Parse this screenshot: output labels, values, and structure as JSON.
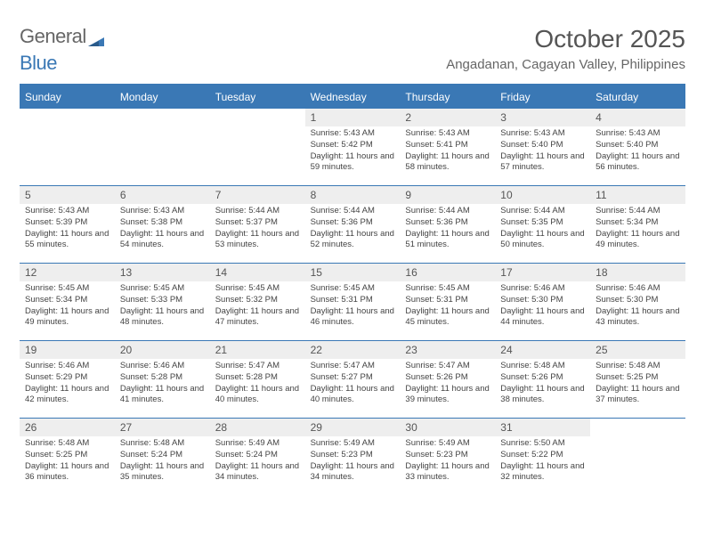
{
  "logo": {
    "part1": "General",
    "part2": "Blue"
  },
  "title": "October 2025",
  "subtitle": "Angadanan, Cagayan Valley, Philippines",
  "colors": {
    "brand_blue": "#3a78b5",
    "header_bg": "#3a78b5",
    "daynum_bg": "#eeeeee",
    "text": "#444444",
    "title_text": "#555555"
  },
  "day_headers": [
    "Sunday",
    "Monday",
    "Tuesday",
    "Wednesday",
    "Thursday",
    "Friday",
    "Saturday"
  ],
  "weeks": [
    [
      {
        "n": "",
        "sunrise": "",
        "sunset": "",
        "daylight": ""
      },
      {
        "n": "",
        "sunrise": "",
        "sunset": "",
        "daylight": ""
      },
      {
        "n": "",
        "sunrise": "",
        "sunset": "",
        "daylight": ""
      },
      {
        "n": "1",
        "sunrise": "Sunrise: 5:43 AM",
        "sunset": "Sunset: 5:42 PM",
        "daylight": "Daylight: 11 hours and 59 minutes."
      },
      {
        "n": "2",
        "sunrise": "Sunrise: 5:43 AM",
        "sunset": "Sunset: 5:41 PM",
        "daylight": "Daylight: 11 hours and 58 minutes."
      },
      {
        "n": "3",
        "sunrise": "Sunrise: 5:43 AM",
        "sunset": "Sunset: 5:40 PM",
        "daylight": "Daylight: 11 hours and 57 minutes."
      },
      {
        "n": "4",
        "sunrise": "Sunrise: 5:43 AM",
        "sunset": "Sunset: 5:40 PM",
        "daylight": "Daylight: 11 hours and 56 minutes."
      }
    ],
    [
      {
        "n": "5",
        "sunrise": "Sunrise: 5:43 AM",
        "sunset": "Sunset: 5:39 PM",
        "daylight": "Daylight: 11 hours and 55 minutes."
      },
      {
        "n": "6",
        "sunrise": "Sunrise: 5:43 AM",
        "sunset": "Sunset: 5:38 PM",
        "daylight": "Daylight: 11 hours and 54 minutes."
      },
      {
        "n": "7",
        "sunrise": "Sunrise: 5:44 AM",
        "sunset": "Sunset: 5:37 PM",
        "daylight": "Daylight: 11 hours and 53 minutes."
      },
      {
        "n": "8",
        "sunrise": "Sunrise: 5:44 AM",
        "sunset": "Sunset: 5:36 PM",
        "daylight": "Daylight: 11 hours and 52 minutes."
      },
      {
        "n": "9",
        "sunrise": "Sunrise: 5:44 AM",
        "sunset": "Sunset: 5:36 PM",
        "daylight": "Daylight: 11 hours and 51 minutes."
      },
      {
        "n": "10",
        "sunrise": "Sunrise: 5:44 AM",
        "sunset": "Sunset: 5:35 PM",
        "daylight": "Daylight: 11 hours and 50 minutes."
      },
      {
        "n": "11",
        "sunrise": "Sunrise: 5:44 AM",
        "sunset": "Sunset: 5:34 PM",
        "daylight": "Daylight: 11 hours and 49 minutes."
      }
    ],
    [
      {
        "n": "12",
        "sunrise": "Sunrise: 5:45 AM",
        "sunset": "Sunset: 5:34 PM",
        "daylight": "Daylight: 11 hours and 49 minutes."
      },
      {
        "n": "13",
        "sunrise": "Sunrise: 5:45 AM",
        "sunset": "Sunset: 5:33 PM",
        "daylight": "Daylight: 11 hours and 48 minutes."
      },
      {
        "n": "14",
        "sunrise": "Sunrise: 5:45 AM",
        "sunset": "Sunset: 5:32 PM",
        "daylight": "Daylight: 11 hours and 47 minutes."
      },
      {
        "n": "15",
        "sunrise": "Sunrise: 5:45 AM",
        "sunset": "Sunset: 5:31 PM",
        "daylight": "Daylight: 11 hours and 46 minutes."
      },
      {
        "n": "16",
        "sunrise": "Sunrise: 5:45 AM",
        "sunset": "Sunset: 5:31 PM",
        "daylight": "Daylight: 11 hours and 45 minutes."
      },
      {
        "n": "17",
        "sunrise": "Sunrise: 5:46 AM",
        "sunset": "Sunset: 5:30 PM",
        "daylight": "Daylight: 11 hours and 44 minutes."
      },
      {
        "n": "18",
        "sunrise": "Sunrise: 5:46 AM",
        "sunset": "Sunset: 5:30 PM",
        "daylight": "Daylight: 11 hours and 43 minutes."
      }
    ],
    [
      {
        "n": "19",
        "sunrise": "Sunrise: 5:46 AM",
        "sunset": "Sunset: 5:29 PM",
        "daylight": "Daylight: 11 hours and 42 minutes."
      },
      {
        "n": "20",
        "sunrise": "Sunrise: 5:46 AM",
        "sunset": "Sunset: 5:28 PM",
        "daylight": "Daylight: 11 hours and 41 minutes."
      },
      {
        "n": "21",
        "sunrise": "Sunrise: 5:47 AM",
        "sunset": "Sunset: 5:28 PM",
        "daylight": "Daylight: 11 hours and 40 minutes."
      },
      {
        "n": "22",
        "sunrise": "Sunrise: 5:47 AM",
        "sunset": "Sunset: 5:27 PM",
        "daylight": "Daylight: 11 hours and 40 minutes."
      },
      {
        "n": "23",
        "sunrise": "Sunrise: 5:47 AM",
        "sunset": "Sunset: 5:26 PM",
        "daylight": "Daylight: 11 hours and 39 minutes."
      },
      {
        "n": "24",
        "sunrise": "Sunrise: 5:48 AM",
        "sunset": "Sunset: 5:26 PM",
        "daylight": "Daylight: 11 hours and 38 minutes."
      },
      {
        "n": "25",
        "sunrise": "Sunrise: 5:48 AM",
        "sunset": "Sunset: 5:25 PM",
        "daylight": "Daylight: 11 hours and 37 minutes."
      }
    ],
    [
      {
        "n": "26",
        "sunrise": "Sunrise: 5:48 AM",
        "sunset": "Sunset: 5:25 PM",
        "daylight": "Daylight: 11 hours and 36 minutes."
      },
      {
        "n": "27",
        "sunrise": "Sunrise: 5:48 AM",
        "sunset": "Sunset: 5:24 PM",
        "daylight": "Daylight: 11 hours and 35 minutes."
      },
      {
        "n": "28",
        "sunrise": "Sunrise: 5:49 AM",
        "sunset": "Sunset: 5:24 PM",
        "daylight": "Daylight: 11 hours and 34 minutes."
      },
      {
        "n": "29",
        "sunrise": "Sunrise: 5:49 AM",
        "sunset": "Sunset: 5:23 PM",
        "daylight": "Daylight: 11 hours and 34 minutes."
      },
      {
        "n": "30",
        "sunrise": "Sunrise: 5:49 AM",
        "sunset": "Sunset: 5:23 PM",
        "daylight": "Daylight: 11 hours and 33 minutes."
      },
      {
        "n": "31",
        "sunrise": "Sunrise: 5:50 AM",
        "sunset": "Sunset: 5:22 PM",
        "daylight": "Daylight: 11 hours and 32 minutes."
      },
      {
        "n": "",
        "sunrise": "",
        "sunset": "",
        "daylight": ""
      }
    ]
  ]
}
